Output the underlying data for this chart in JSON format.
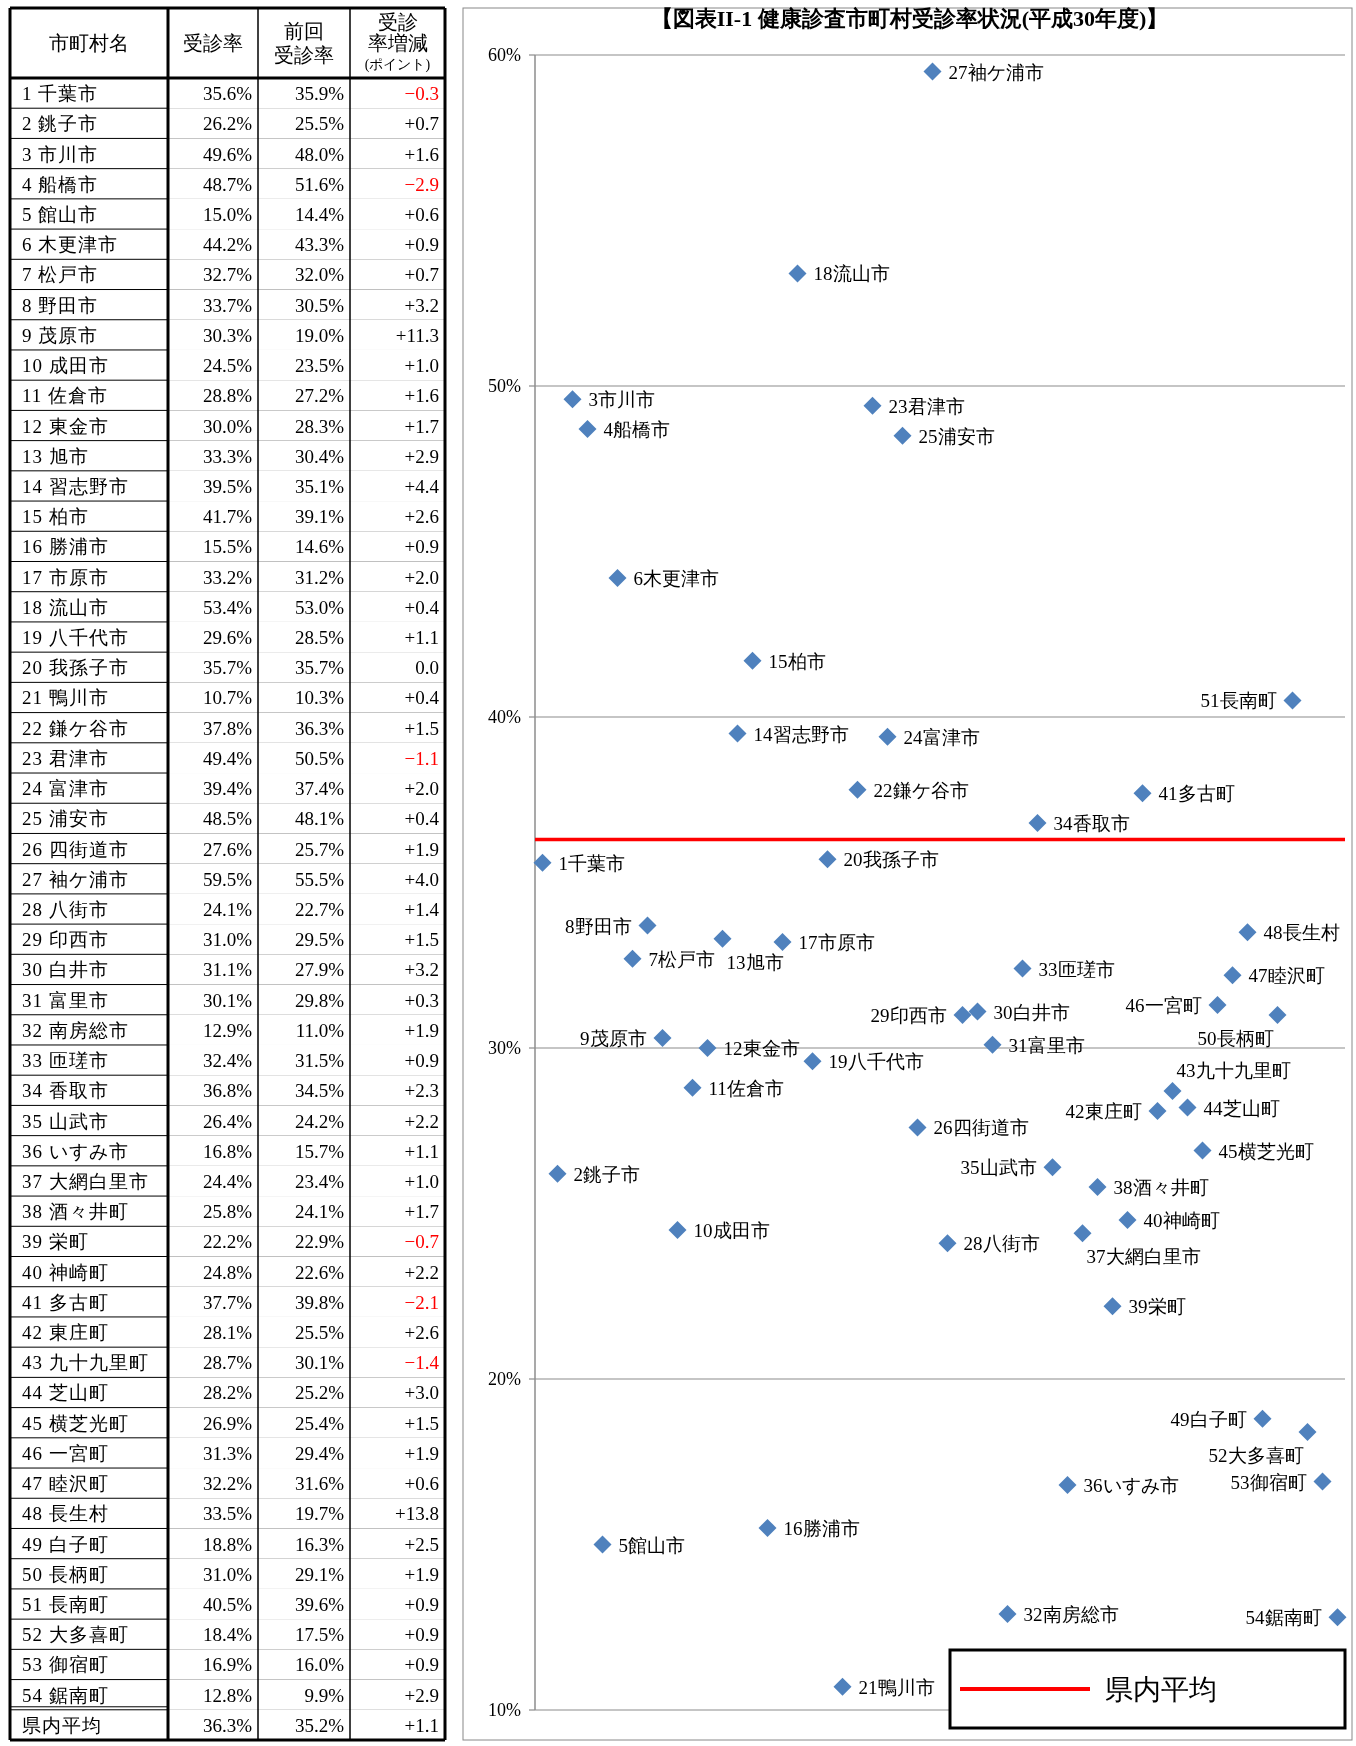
{
  "chart_data": [
    {
      "type": "heatmap",
      "ylabel": "市町村名",
      "categories": [
        "受診率",
        "前回受診率",
        "受診率増減(ポイント)"
      ],
      "y_categories": [
        "1 千葉市",
        "2 銚子市",
        "3 市川市",
        "4 船橋市",
        "5 館山市",
        "6 木更津市",
        "7 松戸市",
        "8 野田市",
        "9 茂原市",
        "10 成田市",
        "11 佐倉市",
        "12 東金市",
        "13 旭市",
        "14 習志野市",
        "15 柏市",
        "16 勝浦市",
        "17 市原市",
        "18 流山市",
        "19 八千代市",
        "20 我孫子市",
        "21 鴨川市",
        "22 鎌ケ谷市",
        "23 君津市",
        "24 富津市",
        "25 浦安市",
        "26 四街道市",
        "27 袖ケ浦市",
        "28 八街市",
        "29 印西市",
        "30 白井市",
        "31 富里市",
        "32 南房総市",
        "33 匝瑳市",
        "34 香取市",
        "35 山武市",
        "36 いすみ市",
        "37 大網白里市",
        "38 酒々井町",
        "39 栄町",
        "40 神崎町",
        "41 多古町",
        "42 東庄町",
        "43 九十九里町",
        "44 芝山町",
        "45 横芝光町",
        "46 一宮町",
        "47 睦沢町",
        "48 長生村",
        "49 白子町",
        "50 長柄町",
        "51 長南町",
        "52 大多喜町",
        "53 御宿町",
        "54 鋸南町",
        "県内平均"
      ],
      "cells": [
        [
          35.6,
          35.9,
          -0.3
        ],
        [
          26.2,
          25.5,
          0.7
        ],
        [
          49.6,
          48.0,
          1.6
        ],
        [
          48.7,
          51.6,
          -2.9
        ],
        [
          15.0,
          14.4,
          0.6
        ],
        [
          44.2,
          43.3,
          0.9
        ],
        [
          32.7,
          32.0,
          0.7
        ],
        [
          33.7,
          30.5,
          3.2
        ],
        [
          30.3,
          19.0,
          11.3
        ],
        [
          24.5,
          23.5,
          1.0
        ],
        [
          28.8,
          27.2,
          1.6
        ],
        [
          30.0,
          28.3,
          1.7
        ],
        [
          33.3,
          30.4,
          2.9
        ],
        [
          39.5,
          35.1,
          4.4
        ],
        [
          41.7,
          39.1,
          2.6
        ],
        [
          15.5,
          14.6,
          0.9
        ],
        [
          33.2,
          31.2,
          2.0
        ],
        [
          53.4,
          53.0,
          0.4
        ],
        [
          29.6,
          28.5,
          1.1
        ],
        [
          35.7,
          35.7,
          0.0
        ],
        [
          10.7,
          10.3,
          0.4
        ],
        [
          37.8,
          36.3,
          1.5
        ],
        [
          49.4,
          50.5,
          -1.1
        ],
        [
          39.4,
          37.4,
          2.0
        ],
        [
          48.5,
          48.1,
          0.4
        ],
        [
          27.6,
          25.7,
          1.9
        ],
        [
          59.5,
          55.5,
          4.0
        ],
        [
          24.1,
          22.7,
          1.4
        ],
        [
          31.0,
          29.5,
          1.5
        ],
        [
          31.1,
          27.9,
          3.2
        ],
        [
          30.1,
          29.8,
          0.3
        ],
        [
          12.9,
          11.0,
          1.9
        ],
        [
          32.4,
          31.5,
          0.9
        ],
        [
          36.8,
          34.5,
          2.3
        ],
        [
          26.4,
          24.2,
          2.2
        ],
        [
          16.8,
          15.7,
          1.1
        ],
        [
          24.4,
          23.4,
          1.0
        ],
        [
          25.8,
          24.1,
          1.7
        ],
        [
          22.2,
          22.9,
          -0.7
        ],
        [
          24.8,
          22.6,
          2.2
        ],
        [
          37.7,
          39.8,
          -2.1
        ],
        [
          28.1,
          25.5,
          2.6
        ],
        [
          28.7,
          30.1,
          -1.4
        ],
        [
          28.2,
          25.2,
          3.0
        ],
        [
          26.9,
          25.4,
          1.5
        ],
        [
          31.3,
          29.4,
          1.9
        ],
        [
          32.2,
          31.6,
          0.6
        ],
        [
          33.5,
          19.7,
          13.8
        ],
        [
          18.8,
          16.3,
          2.5
        ],
        [
          31.0,
          29.1,
          1.9
        ],
        [
          40.5,
          39.6,
          0.9
        ],
        [
          18.4,
          17.5,
          0.9
        ],
        [
          16.9,
          16.0,
          0.9
        ],
        [
          12.8,
          9.9,
          2.9
        ],
        [
          36.3,
          35.2,
          1.1
        ]
      ],
      "cell_labels": [
        [
          "35.6%",
          "35.9%",
          "−0.3"
        ],
        [
          "26.2%",
          "25.5%",
          "+0.7"
        ],
        [
          "49.6%",
          "48.0%",
          "+1.6"
        ],
        [
          "48.7%",
          "51.6%",
          "−2.9"
        ],
        [
          "15.0%",
          "14.4%",
          "+0.6"
        ],
        [
          "44.2%",
          "43.3%",
          "+0.9"
        ],
        [
          "32.7%",
          "32.0%",
          "+0.7"
        ],
        [
          "33.7%",
          "30.5%",
          "+3.2"
        ],
        [
          "30.3%",
          "19.0%",
          "+11.3"
        ],
        [
          "24.5%",
          "23.5%",
          "+1.0"
        ],
        [
          "28.8%",
          "27.2%",
          "+1.6"
        ],
        [
          "30.0%",
          "28.3%",
          "+1.7"
        ],
        [
          "33.3%",
          "30.4%",
          "+2.9"
        ],
        [
          "39.5%",
          "35.1%",
          "+4.4"
        ],
        [
          "41.7%",
          "39.1%",
          "+2.6"
        ],
        [
          "15.5%",
          "14.6%",
          "+0.9"
        ],
        [
          "33.2%",
          "31.2%",
          "+2.0"
        ],
        [
          "53.4%",
          "53.0%",
          "+0.4"
        ],
        [
          "29.6%",
          "28.5%",
          "+1.1"
        ],
        [
          "35.7%",
          "35.7%",
          "0.0"
        ],
        [
          "10.7%",
          "10.3%",
          "+0.4"
        ],
        [
          "37.8%",
          "36.3%",
          "+1.5"
        ],
        [
          "49.4%",
          "50.5%",
          "−1.1"
        ],
        [
          "39.4%",
          "37.4%",
          "+2.0"
        ],
        [
          "48.5%",
          "48.1%",
          "+0.4"
        ],
        [
          "27.6%",
          "25.7%",
          "+1.9"
        ],
        [
          "59.5%",
          "55.5%",
          "+4.0"
        ],
        [
          "24.1%",
          "22.7%",
          "+1.4"
        ],
        [
          "31.0%",
          "29.5%",
          "+1.5"
        ],
        [
          "31.1%",
          "27.9%",
          "+3.2"
        ],
        [
          "30.1%",
          "29.8%",
          "+0.3"
        ],
        [
          "12.9%",
          "11.0%",
          "+1.9"
        ],
        [
          "32.4%",
          "31.5%",
          "+0.9"
        ],
        [
          "36.8%",
          "34.5%",
          "+2.3"
        ],
        [
          "26.4%",
          "24.2%",
          "+2.2"
        ],
        [
          "16.8%",
          "15.7%",
          "+1.1"
        ],
        [
          "24.4%",
          "23.4%",
          "+1.0"
        ],
        [
          "25.8%",
          "24.1%",
          "+1.7"
        ],
        [
          "22.2%",
          "22.9%",
          "−0.7"
        ],
        [
          "24.8%",
          "22.6%",
          "+2.2"
        ],
        [
          "37.7%",
          "39.8%",
          "−2.1"
        ],
        [
          "28.1%",
          "25.5%",
          "+2.6"
        ],
        [
          "28.7%",
          "30.1%",
          "−1.4"
        ],
        [
          "28.2%",
          "25.2%",
          "+3.0"
        ],
        [
          "26.9%",
          "25.4%",
          "+1.5"
        ],
        [
          "31.3%",
          "29.4%",
          "+1.9"
        ],
        [
          "32.2%",
          "31.6%",
          "+0.6"
        ],
        [
          "33.5%",
          "19.7%",
          "+13.8"
        ],
        [
          "18.8%",
          "16.3%",
          "+2.5"
        ],
        [
          "31.0%",
          "29.1%",
          "+1.9"
        ],
        [
          "40.5%",
          "39.6%",
          "+0.9"
        ],
        [
          "18.4%",
          "17.5%",
          "+0.9"
        ],
        [
          "16.9%",
          "16.0%",
          "+0.9"
        ],
        [
          "12.8%",
          "9.9%",
          "+2.9"
        ],
        [
          "36.3%",
          "35.2%",
          "+1.1"
        ]
      ]
    },
    {
      "type": "scatter",
      "title": "【図表II-1 健康診査市町村受診率状況(平成30年度)】",
      "categories": [
        null,
        null,
        null,
        null,
        null,
        null,
        null,
        null,
        null,
        null,
        null,
        null,
        null,
        null,
        null,
        null,
        null,
        null,
        null,
        null,
        null,
        null,
        null,
        null,
        null,
        null,
        null,
        null,
        null,
        null,
        null,
        null,
        null,
        null,
        null,
        null,
        null,
        null,
        null,
        null,
        null,
        null,
        null,
        null,
        null,
        null,
        null,
        null,
        null,
        null,
        null,
        null,
        null,
        null
      ],
      "annotations": [
        "1千葉市",
        "2銚子市",
        "3市川市",
        "4船橋市",
        "5館山市",
        "6木更津市",
        "7松戸市",
        "8野田市",
        "9茂原市",
        "10成田市",
        "11佐倉市",
        "12東金市",
        "13旭市",
        "14習志野市",
        "15柏市",
        "16勝浦市",
        "17市原市",
        "18流山市",
        "19八千代市",
        "20我孫子市",
        "21鴨川市",
        "22鎌ケ谷市",
        "23君津市",
        "24富津市",
        "25浦安市",
        "26四街道市",
        "27袖ケ浦市",
        "28八街市",
        "29印西市",
        "30白井市",
        "31富里市",
        "32南房総市",
        "33匝瑳市",
        "34香取市",
        "35山武市",
        "36いすみ市",
        "37大網白里市",
        "38酒々井町",
        "39栄町",
        "40神崎町",
        "41多古町",
        "42東庄町",
        "43九十九里町",
        "44芝山町",
        "45横芝光町",
        "46一宮町",
        "47睦沢町",
        "48長生村",
        "49白子町",
        "50長柄町",
        "51長南町",
        "52大多喜町",
        "53御宿町",
        "54鋸南町"
      ],
      "series": [
        {
          "color": "#4f81bd",
          "values": [
            35.6,
            26.2,
            49.6,
            48.7,
            15.0,
            44.2,
            32.7,
            33.7,
            30.3,
            24.5,
            28.8,
            30.0,
            33.3,
            39.5,
            41.7,
            15.5,
            33.2,
            53.4,
            29.6,
            35.7,
            10.7,
            37.8,
            49.4,
            39.4,
            48.5,
            27.6,
            59.5,
            24.1,
            31.0,
            31.1,
            30.1,
            12.9,
            32.4,
            36.8,
            26.4,
            16.8,
            24.4,
            25.8,
            22.2,
            24.8,
            37.7,
            28.1,
            28.7,
            28.2,
            26.9,
            31.3,
            32.2,
            33.5,
            18.8,
            31.0,
            40.5,
            18.4,
            16.9,
            12.8
          ]
        }
      ],
      "ylim": [
        10,
        60
      ],
      "yticks": [
        {
          "value": 10,
          "label": "10%"
        },
        {
          "value": 20,
          "label": "20%"
        },
        {
          "value": 30,
          "label": "30%"
        },
        {
          "value": 40,
          "label": "40%"
        },
        {
          "value": 50,
          "label": "50%"
        },
        {
          "value": 60,
          "label": "60%"
        }
      ],
      "grid": "y",
      "marker": "diamond",
      "legend": "bottom right",
      "ref_lines": [
        {
          "axis": "y",
          "value": 36.3,
          "label": "県内平均",
          "color": "#ff0000"
        }
      ]
    }
  ]
}
